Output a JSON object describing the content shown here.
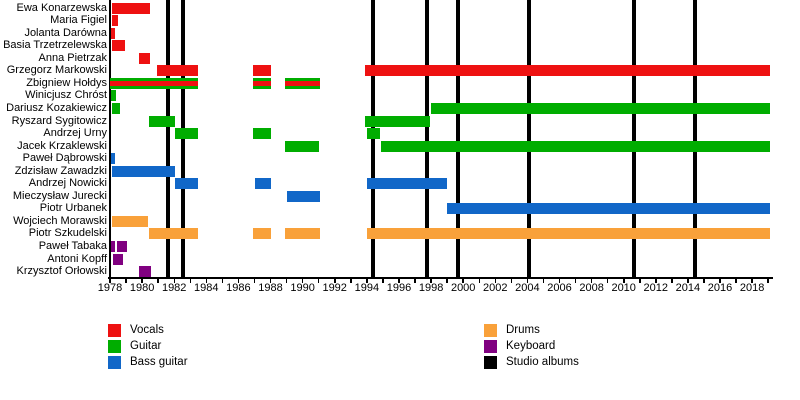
{
  "chart_data": {
    "type": "timeline",
    "title": "",
    "x_range": [
      1978,
      2019.3
    ],
    "x_tick_labels": [
      "1978",
      "1980",
      "1982",
      "1984",
      "1986",
      "1988",
      "1990",
      "1992",
      "1994",
      "1996",
      "1998",
      "2000",
      "2002",
      "2004",
      "2006",
      "2008",
      "2010",
      "2012",
      "2014",
      "2016",
      "2018"
    ],
    "roles_colors": {
      "vocals": "#ee1111",
      "guitar": "#00ad00",
      "bass": "#1167c8",
      "drums": "#f9a13a",
      "keyboard": "#800080",
      "albums": "#000000"
    },
    "members": [
      {
        "name": "Ewa Konarzewska",
        "role": "vocals",
        "segments": [
          [
            1978.1,
            1980.5
          ]
        ]
      },
      {
        "name": "Maria Figiel",
        "role": "vocals",
        "segments": [
          [
            1978.1,
            1978.5
          ]
        ]
      },
      {
        "name": "Jolanta Darówna",
        "role": "vocals",
        "segments": [
          [
            1978.05,
            1978.3
          ]
        ]
      },
      {
        "name": "Basia Trzetrzelewska",
        "role": "vocals",
        "segments": [
          [
            1978.1,
            1978.95
          ]
        ]
      },
      {
        "name": "Anna Pietrzak",
        "role": "vocals",
        "segments": [
          [
            1979.8,
            1980.5
          ]
        ]
      },
      {
        "name": "Grzegorz Markowski",
        "role": "vocals",
        "segments": [
          [
            1980.95,
            1983.5
          ],
          [
            1986.9,
            1988.0
          ],
          [
            1993.9,
            2019.1
          ]
        ]
      },
      {
        "name": "Zbigniew Hołdys",
        "role": "guitar",
        "role2": "vocals",
        "segments": [
          [
            1978.0,
            1983.5
          ],
          [
            1986.9,
            1988.0
          ],
          [
            1988.9,
            1991.1
          ]
        ]
      },
      {
        "name": "Winicjusz Chróst",
        "role": "guitar",
        "segments": [
          [
            1978.05,
            1978.4
          ]
        ]
      },
      {
        "name": "Dariusz Kozakiewicz",
        "role": "guitar",
        "segments": [
          [
            1978.1,
            1978.6
          ],
          [
            1998.0,
            2019.1
          ]
        ]
      },
      {
        "name": "Ryszard Sygitowicz",
        "role": "guitar",
        "segments": [
          [
            1980.4,
            1982.05
          ],
          [
            1993.9,
            1997.95
          ]
        ]
      },
      {
        "name": "Andrzej Urny",
        "role": "guitar",
        "segments": [
          [
            1982.05,
            1983.5
          ],
          [
            1986.9,
            1988.0
          ],
          [
            1994.0,
            1994.85
          ]
        ]
      },
      {
        "name": "Jacek Krzaklewski",
        "role": "guitar",
        "segments": [
          [
            1988.9,
            1991.0
          ],
          [
            1994.9,
            2019.1
          ]
        ]
      },
      {
        "name": "Paweł Dąbrowski",
        "role": "bass",
        "segments": [
          [
            1978.05,
            1978.3
          ]
        ]
      },
      {
        "name": "Zdzisław Zawadzki",
        "role": "bass",
        "segments": [
          [
            1978.1,
            1982.05
          ]
        ]
      },
      {
        "name": "Andrzej Nowicki",
        "role": "bass",
        "segments": [
          [
            1982.05,
            1983.5
          ],
          [
            1987.0,
            1988.0
          ],
          [
            1994.0,
            1999.0
          ]
        ]
      },
      {
        "name": "Mieczysław Jurecki",
        "role": "bass",
        "segments": [
          [
            1989.0,
            1991.1
          ]
        ]
      },
      {
        "name": "Piotr Urbanek",
        "role": "bass",
        "segments": [
          [
            1999.0,
            2019.1
          ]
        ]
      },
      {
        "name": "Wojciech Morawski",
        "role": "drums",
        "segments": [
          [
            1978.1,
            1980.4
          ]
        ]
      },
      {
        "name": "Piotr Szkudelski",
        "role": "drums",
        "segments": [
          [
            1980.4,
            1983.5
          ],
          [
            1986.9,
            1988.0
          ],
          [
            1988.9,
            1991.1
          ],
          [
            1994.0,
            2019.1
          ]
        ]
      },
      {
        "name": "Paweł Tabaka",
        "role": "keyboard",
        "segments": [
          [
            1978.05,
            1978.3
          ],
          [
            1978.45,
            1979.05
          ]
        ]
      },
      {
        "name": "Antoni Kopff",
        "role": "keyboard",
        "segments": [
          [
            1978.2,
            1978.8
          ]
        ]
      },
      {
        "name": "Krzysztof Orłowski",
        "role": "keyboard",
        "segments": [
          [
            1979.8,
            1980.55
          ]
        ]
      }
    ],
    "albums": {
      "years": [
        1981.6,
        1982.55,
        1994.4,
        1997.75,
        1999.65,
        2004.1,
        2010.65,
        2014.45
      ]
    },
    "legend": {
      "left": [
        {
          "label": "Vocals",
          "color": "#ee1111"
        },
        {
          "label": "Guitar",
          "color": "#00ad00"
        },
        {
          "label": "Bass guitar",
          "color": "#1167c8"
        }
      ],
      "right": [
        {
          "label": "Drums",
          "color": "#f9a13a"
        },
        {
          "label": "Keyboard",
          "color": "#800080"
        },
        {
          "label": "Studio albums",
          "color": "#000000"
        }
      ]
    }
  }
}
